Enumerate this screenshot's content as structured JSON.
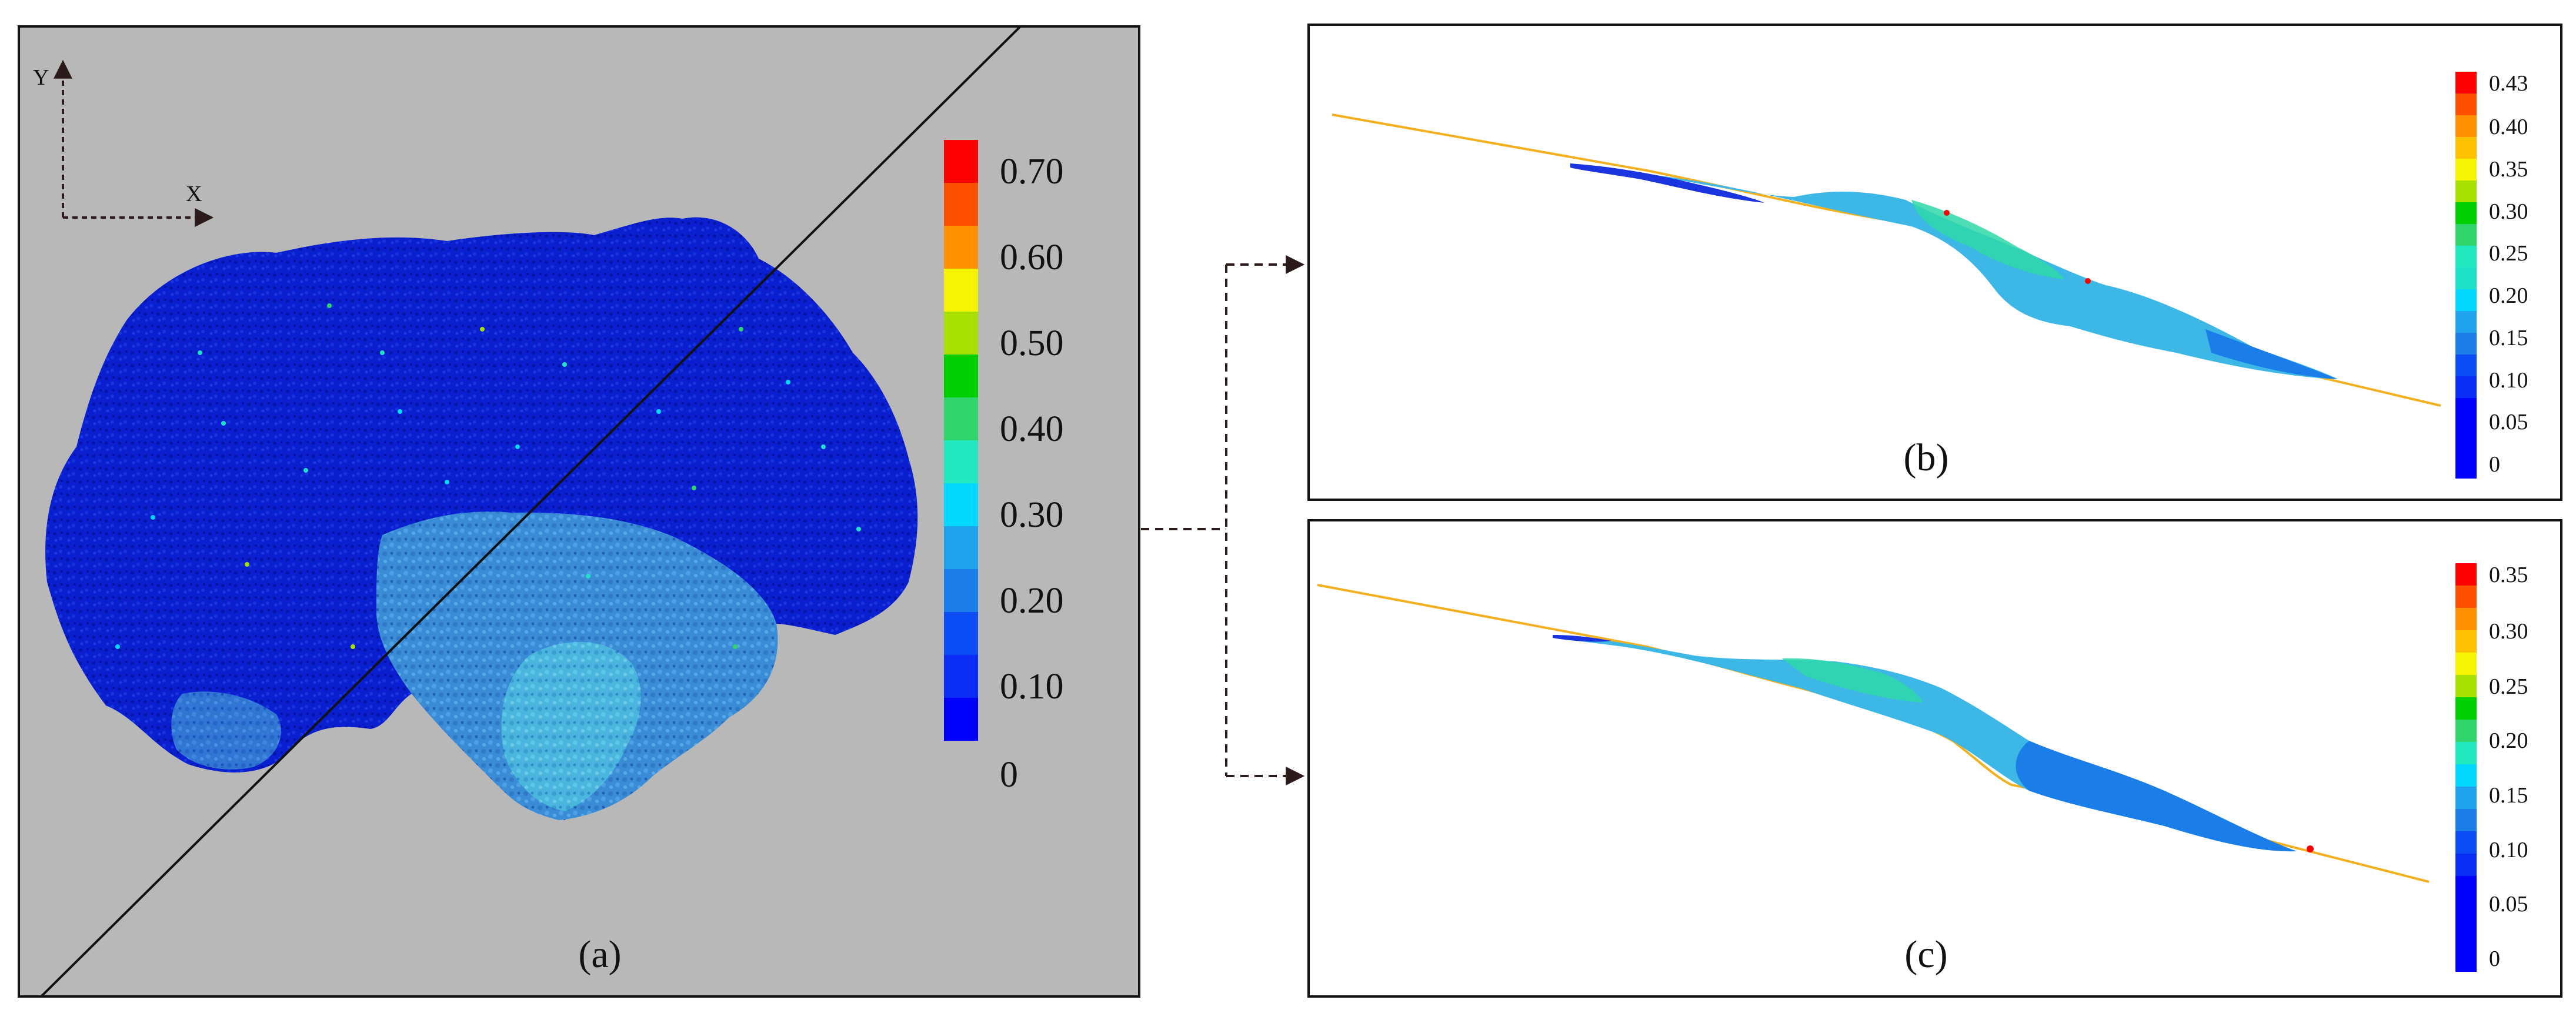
{
  "panel_a": {
    "label": "(a)",
    "axis_y": "Y",
    "axis_x": "X",
    "background": "#b8b8b8",
    "colorbar_ticks": [
      "0.70",
      "0.60",
      "0.50",
      "0.40",
      "0.30",
      "0.20",
      "0.10",
      "0"
    ]
  },
  "panel_b": {
    "label": "(b)",
    "colorbar_ticks": [
      "0.43",
      "0.40",
      "0.35",
      "0.30",
      "0.25",
      "0.20",
      "0.15",
      "0.10",
      "0.05",
      "0"
    ]
  },
  "panel_c": {
    "label": "(c)",
    "colorbar_ticks": [
      "0.35",
      "0.30",
      "0.25",
      "0.20",
      "0.15",
      "0.10",
      "0.05",
      "0"
    ]
  },
  "colors": {
    "colormap": [
      "#0000ff",
      "#0b4cf5",
      "#1a7de8",
      "#1fa3ee",
      "#00d8ff",
      "#22e8c0",
      "#2fd46a",
      "#00d000",
      "#a8e000",
      "#f6f400",
      "#ffc000",
      "#ff9000",
      "#ff5000",
      "#ff0000"
    ],
    "slope_line": "#f2b01e",
    "particle_dark": "#0a1fd0",
    "particle_mid": "#3d8fd8",
    "particle_light": "#48b4dc"
  }
}
